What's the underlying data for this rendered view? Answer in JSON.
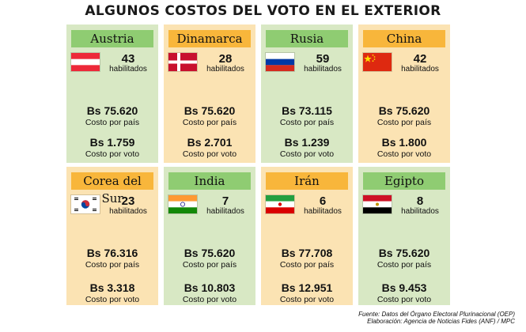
{
  "title": "ALGUNOS COSTOS DEL VOTO EN EL EXTERIOR",
  "cost_label": "Costo por país",
  "vote_label": "Costo por voto",
  "hab_label": "habilitados",
  "countries": [
    {
      "name": "Austria",
      "habilitados": "43",
      "costo_pais": "Bs 75.620",
      "costo_voto": "Bs 1.759",
      "flag": "austria-flag-icon",
      "color": "green"
    },
    {
      "name": "Dinamarca",
      "habilitados": "28",
      "costo_pais": "Bs 75.620",
      "costo_voto": "Bs 2.701",
      "flag": "denmark-flag-icon",
      "color": "orange"
    },
    {
      "name": "Rusia",
      "habilitados": "59",
      "costo_pais": "Bs 73.115",
      "costo_voto": "Bs 1.239",
      "flag": "russia-flag-icon",
      "color": "green"
    },
    {
      "name": "China",
      "habilitados": "42",
      "costo_pais": "Bs 75.620",
      "costo_voto": "Bs 1.800",
      "flag": "china-flag-icon",
      "color": "orange"
    },
    {
      "name": "Corea del Sur",
      "habilitados": "23",
      "costo_pais": "Bs 76.316",
      "costo_voto": "Bs 3.318",
      "flag": "south-korea-flag-icon",
      "color": "orange"
    },
    {
      "name": "India",
      "habilitados": "7",
      "costo_pais": "Bs 75.620",
      "costo_voto": "Bs 10.803",
      "flag": "india-flag-icon",
      "color": "green"
    },
    {
      "name": "Irán",
      "habilitados": "6",
      "costo_pais": "Bs 77.708",
      "costo_voto": "Bs 12.951",
      "flag": "iran-flag-icon",
      "color": "orange"
    },
    {
      "name": "Egipto",
      "habilitados": "8",
      "costo_pais": "Bs 75.620",
      "costo_voto": "Bs 9.453",
      "flag": "egypt-flag-icon",
      "color": "green"
    }
  ],
  "source": {
    "line1": "Fuente: Datos del Órgano Electoral Plurinacional (OEP)",
    "line2": "Elaboración: Agencia de Noticias Fides (ANF) / MPC"
  }
}
